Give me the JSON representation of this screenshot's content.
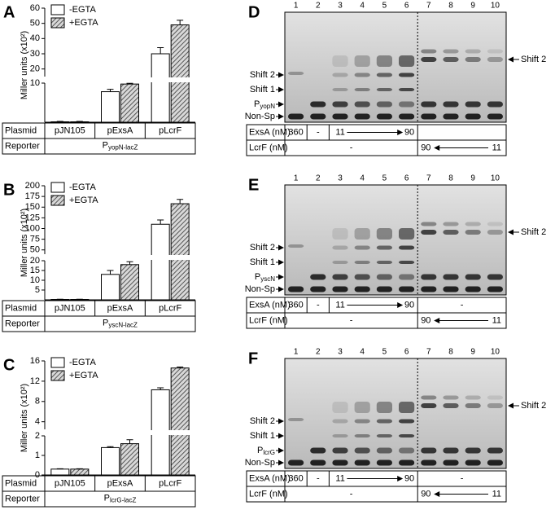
{
  "chart_data": [
    {
      "type": "bar",
      "letter": "A",
      "ylabel": "Miller units (x10²)",
      "categories": [
        "pJN105",
        "pExsA",
        "pLcrF"
      ],
      "series": [
        {
          "name": "-EGTA",
          "color": "#ffffff",
          "values": [
            0.1,
            7.8,
            30
          ],
          "errors": [
            0.1,
            0.6,
            4
          ]
        },
        {
          "name": "+EGTA",
          "color": "#555555",
          "hatch": true,
          "values": [
            0.1,
            10.1,
            49
          ],
          "errors": [
            0.1,
            0.5,
            3
          ]
        }
      ],
      "ylim": [
        0,
        60
      ],
      "ybreak": [
        10,
        15
      ],
      "yticks": [
        10,
        20,
        30,
        40,
        50,
        60
      ],
      "row_labels": [
        "Plasmid",
        "Reporter"
      ],
      "reporter": {
        "main": "P",
        "sub": "yopN-lacZ"
      }
    },
    {
      "type": "bar",
      "letter": "B",
      "ylabel": "Miller units (x10²)",
      "categories": [
        "pJN105",
        "pExsA",
        "pLcrF"
      ],
      "series": [
        {
          "name": "-EGTA",
          "color": "#ffffff",
          "values": [
            0.2,
            13,
            110
          ],
          "errors": [
            0.1,
            2,
            10
          ]
        },
        {
          "name": "+EGTA",
          "color": "#555555",
          "hatch": true,
          "values": [
            0.2,
            18,
            158
          ],
          "errors": [
            0.1,
            1.5,
            10
          ]
        }
      ],
      "ylim": [
        0,
        200
      ],
      "ybreak": [
        20,
        40
      ],
      "yticks": [
        5,
        10,
        15,
        20,
        50,
        75,
        100,
        125,
        150,
        175,
        200
      ],
      "row_labels": [
        "Plasmid",
        "Reporter"
      ],
      "reporter": {
        "main": "P",
        "sub": "yscN-lacZ"
      }
    },
    {
      "type": "bar",
      "letter": "C",
      "ylabel": "Miller units (x10²)",
      "categories": [
        "pJN105",
        "pExsA",
        "pLcrF"
      ],
      "series": [
        {
          "name": "-EGTA",
          "color": "#ffffff",
          "values": [
            0.3,
            1.4,
            10.3
          ],
          "errors": [
            0.02,
            0.05,
            0.4
          ]
        },
        {
          "name": "+EGTA",
          "color": "#555555",
          "hatch": true,
          "values": [
            0.3,
            1.6,
            14.6
          ],
          "errors": [
            0.02,
            0.2,
            0.2
          ]
        }
      ],
      "ylim": [
        0,
        16
      ],
      "ybreak": [
        2,
        2.5
      ],
      "yticks": [
        0,
        1,
        2,
        4,
        8,
        12,
        16
      ],
      "row_labels": [
        "Plasmid",
        "Reporter"
      ],
      "reporter": {
        "main": "P",
        "sub": "lcrG-lacZ"
      }
    }
  ],
  "gels": [
    {
      "letter": "D",
      "lanes": [
        "1",
        "2",
        "3",
        "4",
        "5",
        "6",
        "7",
        "8",
        "9",
        "10"
      ],
      "labels": {
        "shift2": "Shift 2",
        "shift1": "Shift 1",
        "probe": {
          "main": "P",
          "sub": "yopN"
        },
        "nonsp": "Non-Sp"
      },
      "right_label": "Shift 2",
      "exsa": {
        "label": "ExsA (nM)",
        "lane1": "360",
        "lane2": "-",
        "from": "11",
        "to": "90"
      },
      "lcrf": {
        "label": "LcrF (nM)",
        "left": "-",
        "from": "90",
        "to": "11"
      }
    },
    {
      "letter": "E",
      "lanes": [
        "1",
        "2",
        "3",
        "4",
        "5",
        "6",
        "7",
        "8",
        "9",
        "10"
      ],
      "labels": {
        "shift2": "Shift 2",
        "shift1": "Shift 1",
        "probe": {
          "main": "P",
          "sub": "yscN"
        },
        "nonsp": "Non-Sp"
      },
      "right_label": "Shift 2",
      "exsa": {
        "label": "ExsA (nM)",
        "lane1": "360",
        "lane2": "-",
        "from": "11",
        "to": "90",
        "rest": "-"
      },
      "lcrf": {
        "label": "LcrF (nM)",
        "left": "-",
        "from": "90",
        "to": "11"
      }
    },
    {
      "letter": "F",
      "lanes": [
        "1",
        "2",
        "3",
        "4",
        "5",
        "6",
        "7",
        "8",
        "9",
        "10"
      ],
      "labels": {
        "shift2": "Shift 2",
        "shift1": "Shift 1",
        "probe": {
          "main": "P",
          "sub": "lcrG"
        },
        "nonsp": "Non-Sp"
      },
      "right_label": "Shift 2",
      "exsa": {
        "label": "ExsA (nM)",
        "lane1": "360",
        "lane2": "-",
        "from": "11",
        "to": "90",
        "rest": "-"
      },
      "lcrf": {
        "label": "LcrF (nM)",
        "left": "-",
        "from": "90",
        "to": "11"
      }
    }
  ]
}
